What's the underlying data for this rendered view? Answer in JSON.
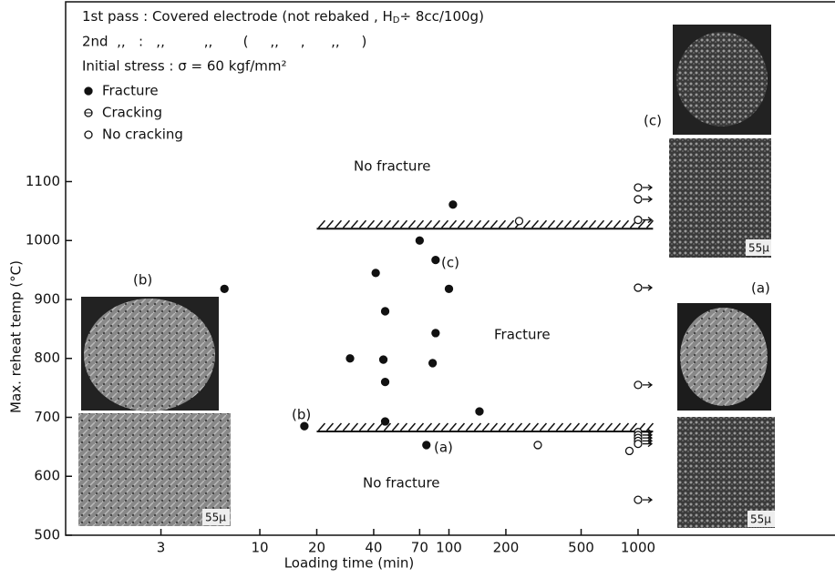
{
  "chart_data": {
    "type": "scatter",
    "header": {
      "line1": [
        "1st pass : Covered electrode (not rebaked , H",
        "D",
        "÷ 8cc/100g)"
      ],
      "line2": "2nd  ,,   :   ,,         ,,       (     ,,     ,      ,,     )",
      "line3": "Initial stress : σ = 60 kgf/mm²"
    },
    "x_label": "Loading time (min)",
    "y_label": "Max. reheat temp (°C)",
    "log_x": true,
    "xlim": [
      0.94,
      11000
    ],
    "ylim": [
      500,
      1405
    ],
    "xticks": [
      3,
      10,
      20,
      40,
      70,
      100,
      200,
      500,
      1000
    ],
    "yticks": [
      500,
      600,
      700,
      800,
      900,
      1000,
      1100
    ],
    "series": [
      {
        "name": "Fracture",
        "marker": "filled",
        "color": "#111",
        "x": [
          6.5,
          17.2,
          70,
          105,
          85,
          41,
          100,
          46,
          85,
          30,
          45,
          82,
          46,
          145,
          46,
          76
        ],
        "values": [
          918,
          685,
          1000,
          1061,
          967,
          945,
          918,
          880,
          843,
          800,
          798,
          792,
          760,
          710,
          693,
          653
        ]
      },
      {
        "name": "Cracking",
        "marker": "half",
        "color": "#111",
        "x": [],
        "values": []
      },
      {
        "name": "No cracking",
        "marker": "open",
        "color": "#111",
        "x": [
          235,
          295,
          900,
          1000,
          1000,
          1000,
          1000,
          1000,
          1000,
          1000,
          1000,
          1000,
          1000,
          1000
        ],
        "values": [
          1033,
          653,
          643,
          1090,
          1070,
          1035,
          920,
          755,
          675,
          670,
          665,
          660,
          655,
          560
        ],
        "arrow": [
          false,
          false,
          false,
          true,
          true,
          true,
          true,
          true,
          true,
          true,
          true,
          true,
          true,
          true
        ]
      }
    ],
    "boundaries": [
      {
        "y": 1020,
        "x": [
          20,
          1200
        ]
      },
      {
        "y": 676,
        "x": [
          20,
          1200
        ]
      }
    ],
    "regions": [
      "No fracture",
      "Fracture",
      "No fracture"
    ],
    "labels": [
      "(a)",
      "(b)",
      "(c)"
    ],
    "scale_mark": "55μ"
  }
}
